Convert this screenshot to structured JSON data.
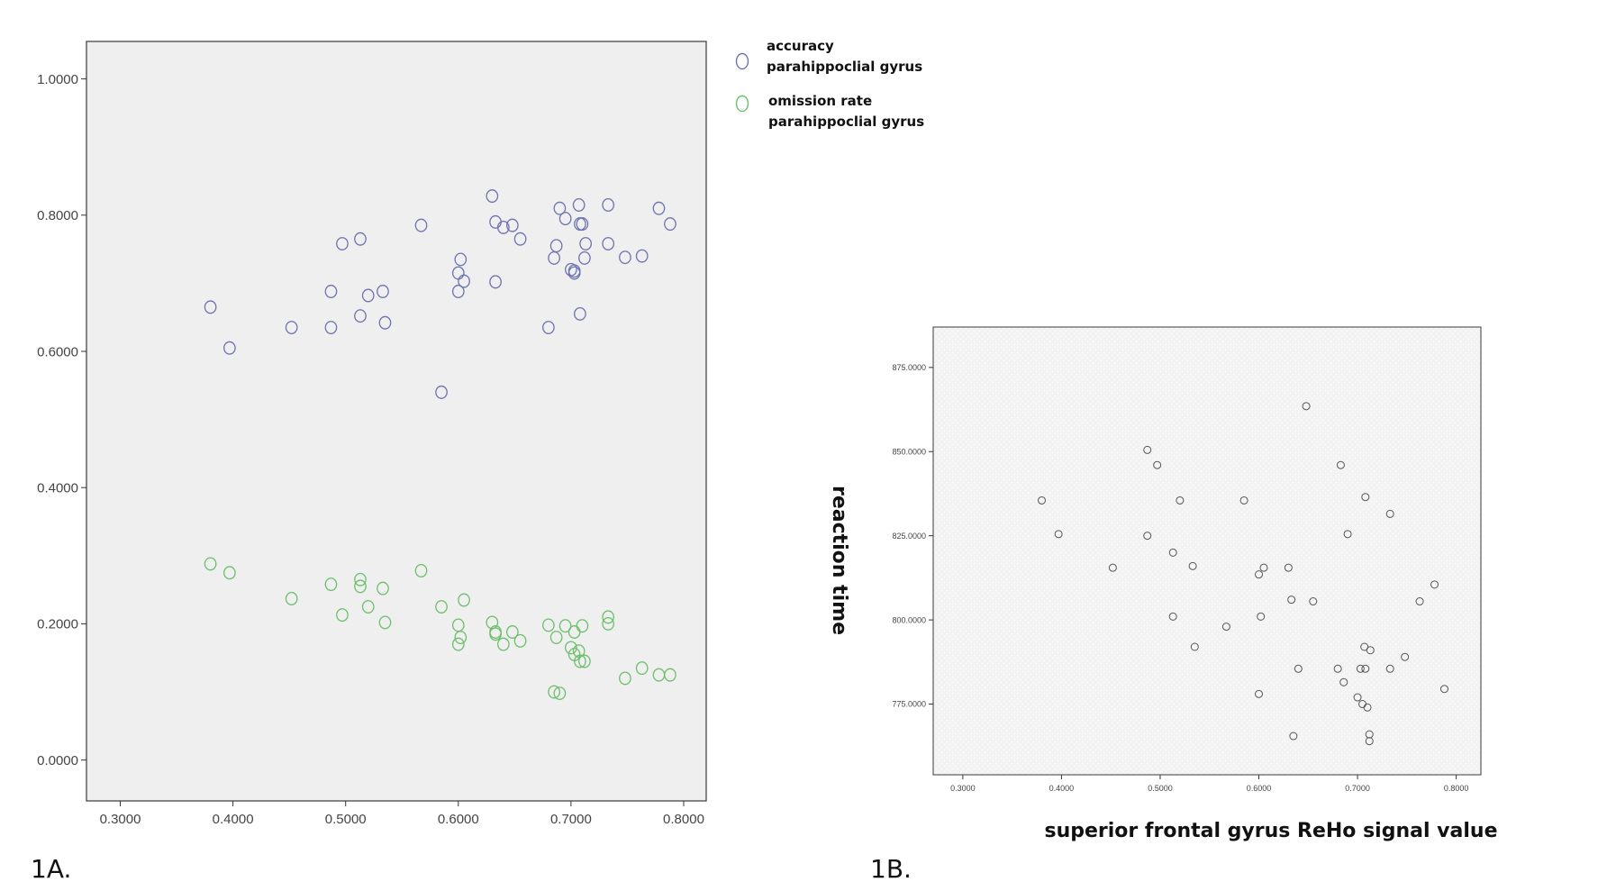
{
  "chart_data": [
    {
      "type": "scatter",
      "panel_label": "1A.",
      "xlabel": "",
      "ylabel": "",
      "xlim": [
        0.27,
        0.82
      ],
      "ylim": [
        -0.06,
        1.055
      ],
      "x_ticks": [
        "0.3000",
        "0.4000",
        "0.5000",
        "0.6000",
        "0.7000",
        "0.8000"
      ],
      "x_tick_values": [
        0.3,
        0.4,
        0.5,
        0.6,
        0.7,
        0.8
      ],
      "y_ticks": [
        "0.0000",
        "0.2000",
        "0.4000",
        "0.6000",
        "0.8000",
        "1.0000"
      ],
      "y_tick_values": [
        0.0,
        0.2,
        0.4,
        0.6,
        0.8,
        1.0
      ],
      "grid": false,
      "background": "#efefef",
      "legend_position": "right-outside-top",
      "series": [
        {
          "name_line1": "accuracy",
          "name_line2": "parahippoclial gyrus",
          "color": "#6d72b0",
          "points": [
            [
              0.38,
              0.665
            ],
            [
              0.397,
              0.605
            ],
            [
              0.452,
              0.635
            ],
            [
              0.487,
              0.635
            ],
            [
              0.487,
              0.688
            ],
            [
              0.497,
              0.758
            ],
            [
              0.513,
              0.765
            ],
            [
              0.513,
              0.652
            ],
            [
              0.52,
              0.682
            ],
            [
              0.533,
              0.688
            ],
            [
              0.535,
              0.642
            ],
            [
              0.567,
              0.785
            ],
            [
              0.585,
              0.54
            ],
            [
              0.6,
              0.715
            ],
            [
              0.602,
              0.735
            ],
            [
              0.6,
              0.688
            ],
            [
              0.605,
              0.703
            ],
            [
              0.63,
              0.828
            ],
            [
              0.633,
              0.79
            ],
            [
              0.633,
              0.702
            ],
            [
              0.64,
              0.782
            ],
            [
              0.648,
              0.785
            ],
            [
              0.655,
              0.765
            ],
            [
              0.68,
              0.635
            ],
            [
              0.685,
              0.737
            ],
            [
              0.687,
              0.755
            ],
            [
              0.69,
              0.81
            ],
            [
              0.695,
              0.795
            ],
            [
              0.7,
              0.72
            ],
            [
              0.703,
              0.718
            ],
            [
              0.703,
              0.715
            ],
            [
              0.707,
              0.815
            ],
            [
              0.708,
              0.655
            ],
            [
              0.708,
              0.787
            ],
            [
              0.71,
              0.787
            ],
            [
              0.712,
              0.737
            ],
            [
              0.713,
              0.758
            ],
            [
              0.733,
              0.815
            ],
            [
              0.733,
              0.758
            ],
            [
              0.748,
              0.738
            ],
            [
              0.763,
              0.74
            ],
            [
              0.778,
              0.81
            ],
            [
              0.788,
              0.787
            ]
          ]
        },
        {
          "name_line1": "omission rate",
          "name_line2": "parahippoclial gyrus",
          "color": "#6cbf6a",
          "points": [
            [
              0.38,
              0.288
            ],
            [
              0.397,
              0.275
            ],
            [
              0.452,
              0.237
            ],
            [
              0.487,
              0.258
            ],
            [
              0.497,
              0.213
            ],
            [
              0.513,
              0.265
            ],
            [
              0.513,
              0.255
            ],
            [
              0.52,
              0.225
            ],
            [
              0.533,
              0.252
            ],
            [
              0.535,
              0.202
            ],
            [
              0.567,
              0.278
            ],
            [
              0.585,
              0.225
            ],
            [
              0.6,
              0.198
            ],
            [
              0.6,
              0.17
            ],
            [
              0.602,
              0.18
            ],
            [
              0.605,
              0.235
            ],
            [
              0.63,
              0.202
            ],
            [
              0.633,
              0.188
            ],
            [
              0.633,
              0.185
            ],
            [
              0.64,
              0.17
            ],
            [
              0.648,
              0.188
            ],
            [
              0.655,
              0.175
            ],
            [
              0.68,
              0.198
            ],
            [
              0.685,
              0.1
            ],
            [
              0.687,
              0.18
            ],
            [
              0.69,
              0.098
            ],
            [
              0.695,
              0.197
            ],
            [
              0.7,
              0.165
            ],
            [
              0.703,
              0.155
            ],
            [
              0.703,
              0.188
            ],
            [
              0.707,
              0.16
            ],
            [
              0.708,
              0.145
            ],
            [
              0.71,
              0.197
            ],
            [
              0.712,
              0.145
            ],
            [
              0.733,
              0.21
            ],
            [
              0.733,
              0.2
            ],
            [
              0.748,
              0.12
            ],
            [
              0.763,
              0.135
            ],
            [
              0.778,
              0.125
            ],
            [
              0.788,
              0.125
            ]
          ]
        }
      ]
    },
    {
      "type": "scatter",
      "panel_label": "1B.",
      "xlabel": "superior frontal gyrus ReHo signal value",
      "ylabel": "reaction time",
      "xlim": [
        0.27,
        0.825
      ],
      "ylim": [
        754,
        887
      ],
      "x_ticks": [
        "0.3000",
        "0.4000",
        "0.5000",
        "0.6000",
        "0.7000",
        "0.8000"
      ],
      "x_tick_values": [
        0.3,
        0.4,
        0.5,
        0.6,
        0.7,
        0.8
      ],
      "y_ticks": [
        "775.0000",
        "800.0000",
        "825.0000",
        "850.0000",
        "875.0000"
      ],
      "y_tick_values": [
        775,
        800,
        825,
        850,
        875
      ],
      "grid": false,
      "background": "#f3f3f3",
      "series": [
        {
          "name": "",
          "color": "#555555",
          "points": [
            [
              0.38,
              835.5
            ],
            [
              0.397,
              825.5
            ],
            [
              0.452,
              815.5
            ],
            [
              0.487,
              825
            ],
            [
              0.487,
              850.5
            ],
            [
              0.497,
              846
            ],
            [
              0.513,
              820
            ],
            [
              0.513,
              801
            ],
            [
              0.52,
              835.5
            ],
            [
              0.533,
              816
            ],
            [
              0.535,
              792
            ],
            [
              0.567,
              798
            ],
            [
              0.585,
              835.5
            ],
            [
              0.6,
              813.5
            ],
            [
              0.602,
              801
            ],
            [
              0.605,
              815.5
            ],
            [
              0.6,
              778
            ],
            [
              0.63,
              815.5
            ],
            [
              0.633,
              806
            ],
            [
              0.635,
              765.5
            ],
            [
              0.64,
              785.5
            ],
            [
              0.648,
              863.5
            ],
            [
              0.655,
              805.5
            ],
            [
              0.68,
              785.5
            ],
            [
              0.683,
              846
            ],
            [
              0.686,
              781.5
            ],
            [
              0.69,
              825.5
            ],
            [
              0.7,
              777
            ],
            [
              0.703,
              785.5
            ],
            [
              0.705,
              775
            ],
            [
              0.707,
              792
            ],
            [
              0.708,
              785.5
            ],
            [
              0.71,
              774
            ],
            [
              0.708,
              836.5
            ],
            [
              0.712,
              764
            ],
            [
              0.712,
              766
            ],
            [
              0.713,
              791
            ],
            [
              0.733,
              785.5
            ],
            [
              0.733,
              831.5
            ],
            [
              0.748,
              789
            ],
            [
              0.763,
              805.5
            ],
            [
              0.778,
              810.5
            ],
            [
              0.788,
              779.5
            ]
          ]
        }
      ]
    }
  ]
}
